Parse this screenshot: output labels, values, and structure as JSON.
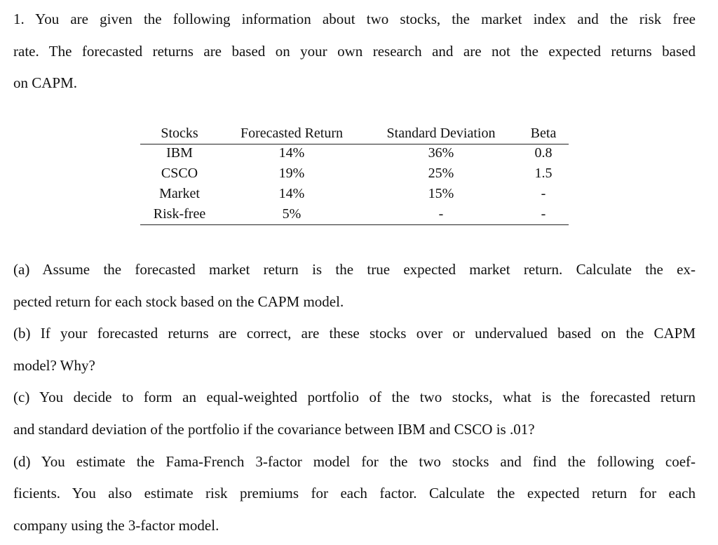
{
  "question": {
    "intro": [
      "1. You are given the following information about two stocks, the market index and the risk free",
      "rate. The forecasted returns are based on your own research and are not the expected returns based",
      "on CAPM."
    ],
    "table": {
      "header": [
        "Stocks",
        "Forecasted Return",
        "Standard Deviation",
        "Beta"
      ],
      "rows": [
        [
          "IBM",
          "14%",
          "36%",
          "0.8"
        ],
        [
          "CSCO",
          "19%",
          "25%",
          "1.5"
        ],
        [
          "Market",
          "14%",
          "15%",
          "-"
        ],
        [
          "Risk-free",
          "5%",
          "-",
          "-"
        ]
      ]
    },
    "parts": [
      [
        "(a) Assume the forecasted market return is the true expected market return. Calculate the ex-",
        "pected return for each stock based on the CAPM model."
      ],
      [
        "(b) If your forecasted returns are correct, are these stocks over or undervalued based on the CAPM",
        "model? Why?"
      ],
      [
        "(c) You decide to form an equal-weighted portfolio of the two stocks, what is the forecasted return",
        "and standard deviation of the portfolio if the covariance between IBM and CSCO is .01?"
      ],
      [
        "(d) You estimate the Fama-French 3-factor model for the two stocks and find the following coef-",
        "ficients. You also estimate risk premiums for each factor. Calculate the expected return for each",
        "company using the 3-factor model."
      ]
    ]
  }
}
